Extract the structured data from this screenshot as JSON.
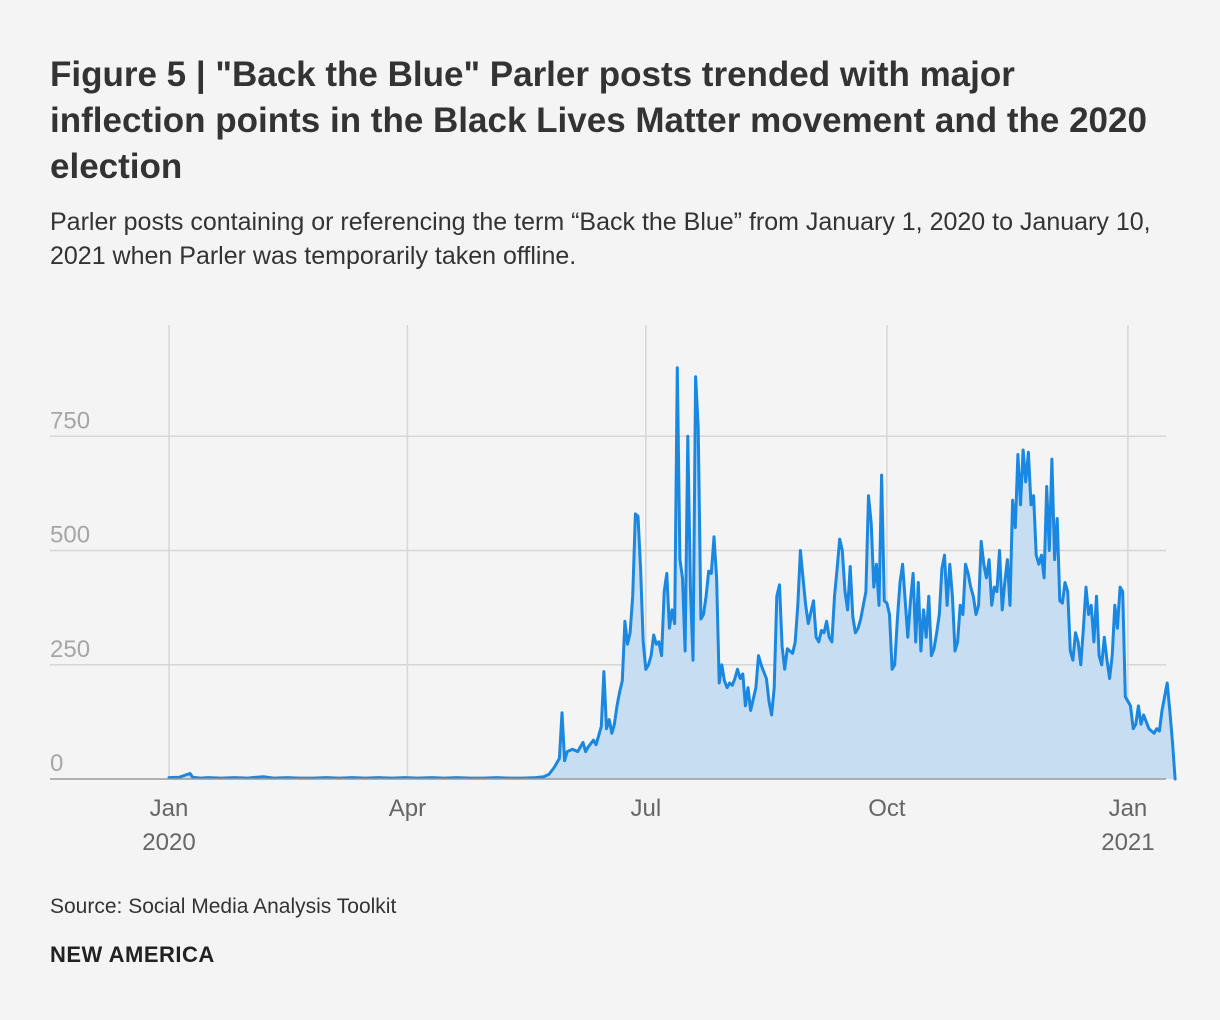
{
  "header": {
    "title": "Figure 5 | \"Back the Blue\" Parler posts trended with major inflection points in the Black Lives Matter movement and the 2020 election",
    "subtitle": "Parler posts containing or referencing the term “Back the Blue” from January 1, 2020 to January 10, 2021 when Parler was temporarily taken offline."
  },
  "footer": {
    "source": "Source: Social Media Analysis Toolkit",
    "brand": "NEW AMERICA"
  },
  "chart_data": {
    "type": "area",
    "title": "",
    "xlabel": "",
    "ylabel": "",
    "ylim": [
      0,
      950
    ],
    "grid": true,
    "series_name": "Parler posts referencing \"Back the Blue\"",
    "y_ticks": [
      {
        "value": 0,
        "label": "0"
      },
      {
        "value": 250,
        "label": "250"
      },
      {
        "value": 500,
        "label": "500"
      },
      {
        "value": 750,
        "label": "750"
      }
    ],
    "x_ticks": [
      {
        "day": 0,
        "label": "Jan",
        "sublabel": "2020"
      },
      {
        "day": 91,
        "label": "Apr",
        "sublabel": ""
      },
      {
        "day": 182,
        "label": "Jul",
        "sublabel": ""
      },
      {
        "day": 274,
        "label": "Oct",
        "sublabel": ""
      },
      {
        "day": 366,
        "label": "Jan",
        "sublabel": "2021"
      }
    ],
    "points": [
      [
        0,
        3
      ],
      [
        4,
        4
      ],
      [
        7,
        10
      ],
      [
        8,
        12
      ],
      [
        9,
        4
      ],
      [
        12,
        2
      ],
      [
        15,
        3
      ],
      [
        20,
        2
      ],
      [
        25,
        3
      ],
      [
        30,
        2
      ],
      [
        36,
        5
      ],
      [
        40,
        2
      ],
      [
        45,
        3
      ],
      [
        50,
        2
      ],
      [
        55,
        2
      ],
      [
        60,
        3
      ],
      [
        65,
        2
      ],
      [
        70,
        3
      ],
      [
        75,
        2
      ],
      [
        80,
        3
      ],
      [
        85,
        2
      ],
      [
        90,
        3
      ],
      [
        95,
        2
      ],
      [
        100,
        3
      ],
      [
        105,
        2
      ],
      [
        110,
        3
      ],
      [
        115,
        2
      ],
      [
        120,
        2
      ],
      [
        125,
        3
      ],
      [
        130,
        2
      ],
      [
        135,
        2
      ],
      [
        140,
        3
      ],
      [
        143,
        5
      ],
      [
        145,
        10
      ],
      [
        147,
        25
      ],
      [
        149,
        45
      ],
      [
        150,
        145
      ],
      [
        151,
        40
      ],
      [
        152,
        60
      ],
      [
        154,
        65
      ],
      [
        156,
        60
      ],
      [
        158,
        80
      ],
      [
        159,
        60
      ],
      [
        160,
        70
      ],
      [
        162,
        85
      ],
      [
        163,
        75
      ],
      [
        165,
        115
      ],
      [
        166,
        235
      ],
      [
        167,
        110
      ],
      [
        168,
        130
      ],
      [
        169,
        100
      ],
      [
        170,
        120
      ],
      [
        171,
        160
      ],
      [
        172,
        190
      ],
      [
        173,
        215
      ],
      [
        174,
        345
      ],
      [
        175,
        295
      ],
      [
        176,
        320
      ],
      [
        177,
        400
      ],
      [
        178,
        580
      ],
      [
        179,
        575
      ],
      [
        180,
        460
      ],
      [
        181,
        300
      ],
      [
        182,
        240
      ],
      [
        183,
        250
      ],
      [
        184,
        270
      ],
      [
        185,
        315
      ],
      [
        186,
        295
      ],
      [
        187,
        300
      ],
      [
        188,
        270
      ],
      [
        189,
        410
      ],
      [
        190,
        450
      ],
      [
        191,
        330
      ],
      [
        192,
        370
      ],
      [
        193,
        340
      ],
      [
        194,
        900
      ],
      [
        195,
        480
      ],
      [
        196,
        440
      ],
      [
        197,
        280
      ],
      [
        198,
        750
      ],
      [
        199,
        420
      ],
      [
        200,
        260
      ],
      [
        201,
        880
      ],
      [
        202,
        770
      ],
      [
        203,
        350
      ],
      [
        204,
        360
      ],
      [
        205,
        400
      ],
      [
        206,
        455
      ],
      [
        207,
        450
      ],
      [
        208,
        530
      ],
      [
        209,
        440
      ],
      [
        210,
        210
      ],
      [
        211,
        250
      ],
      [
        212,
        215
      ],
      [
        213,
        200
      ],
      [
        214,
        210
      ],
      [
        215,
        205
      ],
      [
        216,
        220
      ],
      [
        217,
        240
      ],
      [
        218,
        220
      ],
      [
        219,
        230
      ],
      [
        220,
        160
      ],
      [
        221,
        200
      ],
      [
        222,
        150
      ],
      [
        223,
        175
      ],
      [
        224,
        200
      ],
      [
        225,
        270
      ],
      [
        226,
        250
      ],
      [
        227,
        235
      ],
      [
        228,
        220
      ],
      [
        229,
        170
      ],
      [
        230,
        140
      ],
      [
        231,
        200
      ],
      [
        232,
        400
      ],
      [
        233,
        425
      ],
      [
        234,
        290
      ],
      [
        235,
        240
      ],
      [
        236,
        285
      ],
      [
        237,
        280
      ],
      [
        238,
        275
      ],
      [
        239,
        300
      ],
      [
        240,
        380
      ],
      [
        241,
        500
      ],
      [
        242,
        440
      ],
      [
        243,
        380
      ],
      [
        244,
        340
      ],
      [
        245,
        365
      ],
      [
        246,
        390
      ],
      [
        247,
        310
      ],
      [
        248,
        300
      ],
      [
        249,
        325
      ],
      [
        250,
        320
      ],
      [
        251,
        345
      ],
      [
        252,
        310
      ],
      [
        253,
        300
      ],
      [
        254,
        400
      ],
      [
        255,
        460
      ],
      [
        256,
        525
      ],
      [
        257,
        500
      ],
      [
        258,
        410
      ],
      [
        259,
        370
      ],
      [
        260,
        465
      ],
      [
        261,
        355
      ],
      [
        262,
        320
      ],
      [
        263,
        330
      ],
      [
        264,
        350
      ],
      [
        265,
        380
      ],
      [
        266,
        410
      ],
      [
        267,
        620
      ],
      [
        268,
        560
      ],
      [
        269,
        420
      ],
      [
        270,
        470
      ],
      [
        271,
        380
      ],
      [
        272,
        665
      ],
      [
        273,
        390
      ],
      [
        274,
        385
      ],
      [
        275,
        360
      ],
      [
        276,
        240
      ],
      [
        277,
        250
      ],
      [
        278,
        350
      ],
      [
        279,
        430
      ],
      [
        280,
        470
      ],
      [
        281,
        390
      ],
      [
        282,
        310
      ],
      [
        283,
        390
      ],
      [
        284,
        450
      ],
      [
        285,
        300
      ],
      [
        286,
        430
      ],
      [
        287,
        280
      ],
      [
        288,
        370
      ],
      [
        289,
        310
      ],
      [
        290,
        400
      ],
      [
        291,
        270
      ],
      [
        292,
        285
      ],
      [
        293,
        320
      ],
      [
        294,
        360
      ],
      [
        295,
        460
      ],
      [
        296,
        490
      ],
      [
        297,
        380
      ],
      [
        298,
        470
      ],
      [
        299,
        400
      ],
      [
        300,
        280
      ],
      [
        301,
        300
      ],
      [
        302,
        380
      ],
      [
        303,
        360
      ],
      [
        304,
        470
      ],
      [
        305,
        450
      ],
      [
        306,
        420
      ],
      [
        307,
        400
      ],
      [
        308,
        360
      ],
      [
        309,
        380
      ],
      [
        310,
        520
      ],
      [
        311,
        470
      ],
      [
        312,
        440
      ],
      [
        313,
        480
      ],
      [
        314,
        380
      ],
      [
        315,
        420
      ],
      [
        316,
        410
      ],
      [
        317,
        500
      ],
      [
        318,
        370
      ],
      [
        319,
        430
      ],
      [
        320,
        480
      ],
      [
        321,
        380
      ],
      [
        322,
        610
      ],
      [
        323,
        550
      ],
      [
        324,
        710
      ],
      [
        325,
        600
      ],
      [
        326,
        720
      ],
      [
        327,
        650
      ],
      [
        328,
        715
      ],
      [
        329,
        600
      ],
      [
        330,
        620
      ],
      [
        331,
        490
      ],
      [
        332,
        470
      ],
      [
        333,
        490
      ],
      [
        334,
        440
      ],
      [
        335,
        640
      ],
      [
        336,
        500
      ],
      [
        337,
        700
      ],
      [
        338,
        480
      ],
      [
        339,
        570
      ],
      [
        340,
        390
      ],
      [
        341,
        385
      ],
      [
        342,
        430
      ],
      [
        343,
        410
      ],
      [
        344,
        280
      ],
      [
        345,
        260
      ],
      [
        346,
        320
      ],
      [
        347,
        300
      ],
      [
        348,
        250
      ],
      [
        349,
        330
      ],
      [
        350,
        420
      ],
      [
        351,
        360
      ],
      [
        352,
        380
      ],
      [
        353,
        300
      ],
      [
        354,
        400
      ],
      [
        355,
        270
      ],
      [
        356,
        250
      ],
      [
        357,
        310
      ],
      [
        358,
        260
      ],
      [
        359,
        220
      ],
      [
        360,
        270
      ],
      [
        361,
        380
      ],
      [
        362,
        330
      ],
      [
        363,
        420
      ],
      [
        364,
        410
      ],
      [
        365,
        180
      ],
      [
        366,
        170
      ],
      [
        367,
        160
      ],
      [
        368,
        110
      ],
      [
        369,
        120
      ],
      [
        370,
        160
      ],
      [
        371,
        120
      ],
      [
        372,
        140
      ],
      [
        373,
        125
      ],
      [
        374,
        110
      ],
      [
        375,
        105
      ],
      [
        376,
        100
      ],
      [
        377,
        110
      ],
      [
        378,
        105
      ],
      [
        379,
        150
      ],
      [
        380,
        180
      ],
      [
        381,
        210
      ],
      [
        382,
        150
      ],
      [
        383,
        80
      ],
      [
        384,
        0
      ]
    ]
  },
  "colors": {
    "line": "#1a87e0",
    "area": "#c7ddf1",
    "grid": "#d6d6d6",
    "axis": "#9a9a9a",
    "background": "#f4f4f4"
  }
}
